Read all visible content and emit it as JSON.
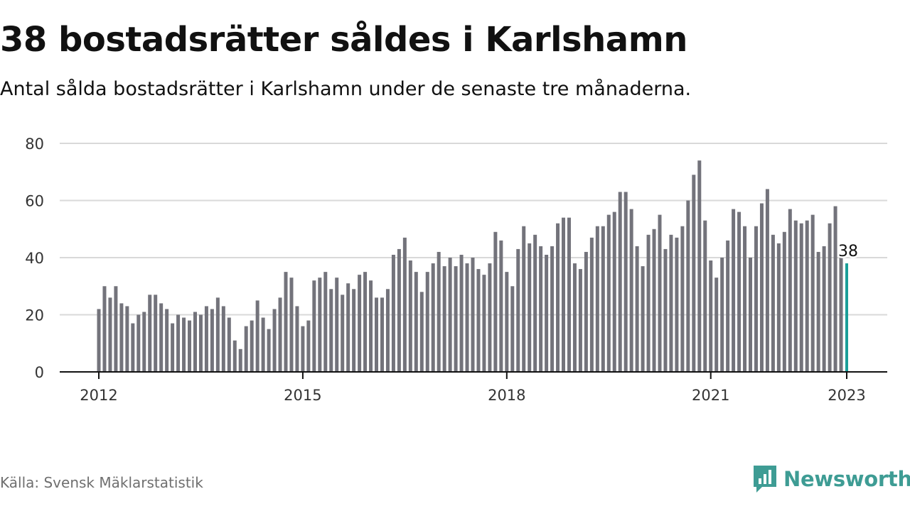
{
  "title": "38 bostadsrätter såldes i Karlshamn",
  "subtitle": "Antal sålda bostadsrätter i Karlshamn under de senaste tre månaderna.",
  "source": "Källa: Svensk Mäklarstatistik",
  "brand": {
    "name": "Newsworthy",
    "icon": "newsworthy-chart-bubble-icon",
    "color": "#3e9c94"
  },
  "chart_data": {
    "type": "bar",
    "x_start": "2012-01",
    "interval": "month",
    "values": [
      22,
      30,
      26,
      30,
      24,
      23,
      17,
      20,
      21,
      27,
      27,
      24,
      22,
      17,
      20,
      19,
      18,
      21,
      20,
      23,
      22,
      26,
      23,
      19,
      11,
      8,
      16,
      18,
      25,
      19,
      15,
      22,
      26,
      35,
      33,
      23,
      16,
      18,
      32,
      33,
      35,
      29,
      33,
      27,
      31,
      29,
      34,
      35,
      32,
      26,
      26,
      29,
      41,
      43,
      47,
      39,
      35,
      28,
      35,
      38,
      42,
      37,
      40,
      37,
      41,
      38,
      40,
      36,
      34,
      38,
      49,
      46,
      35,
      30,
      43,
      51,
      45,
      48,
      44,
      41,
      44,
      52,
      54,
      54,
      38,
      36,
      42,
      47,
      51,
      51,
      55,
      56,
      63,
      63,
      57,
      44,
      37,
      48,
      50,
      55,
      43,
      48,
      47,
      51,
      60,
      69,
      74,
      53,
      39,
      33,
      40,
      46,
      57,
      56,
      51,
      40,
      51,
      59,
      64,
      48,
      45,
      49,
      57,
      53,
      52,
      53,
      55,
      42,
      44,
      52,
      58,
      41,
      38
    ],
    "highlight": {
      "index": 132,
      "label": "38",
      "color": "#1a9e98"
    },
    "bar_color": "#73737b",
    "x_ticks": [
      {
        "label": "2012",
        "date": "2012-01"
      },
      {
        "label": "2015",
        "date": "2015-01"
      },
      {
        "label": "2018",
        "date": "2018-01"
      },
      {
        "label": "2021",
        "date": "2021-01"
      },
      {
        "label": "2023",
        "date": "2023-01"
      }
    ],
    "y_ticks": [
      "0",
      "20",
      "40",
      "60",
      "80"
    ],
    "ylim": [
      0,
      80
    ],
    "grid": true
  }
}
